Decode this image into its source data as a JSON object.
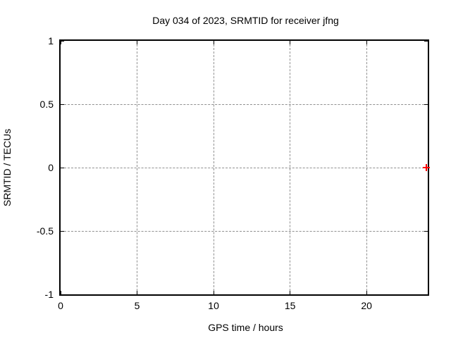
{
  "chart_data": {
    "type": "scatter",
    "title": "Day 034 of 2023, SRMTID for receiver jfng",
    "xlabel": "GPS time / hours",
    "ylabel": "SRMTID / TECUs",
    "xlim": [
      0,
      24
    ],
    "ylim": [
      -1,
      1
    ],
    "xticks": [
      0,
      5,
      10,
      15,
      20
    ],
    "xtick_labels": [
      "0",
      "5",
      "10",
      "15",
      "20"
    ],
    "yticks": [
      -1,
      -0.5,
      0,
      0.5,
      1
    ],
    "ytick_labels": [
      "-1",
      "-0.5",
      "0",
      "0.5",
      "1"
    ],
    "grid": true,
    "legend_position": "none",
    "background_color": "#ffffff",
    "series": [
      {
        "name": "SRMTID",
        "marker": "plus",
        "color": "#ff0000",
        "points": [
          {
            "x": 23.9,
            "y": 0.0
          }
        ]
      }
    ]
  }
}
